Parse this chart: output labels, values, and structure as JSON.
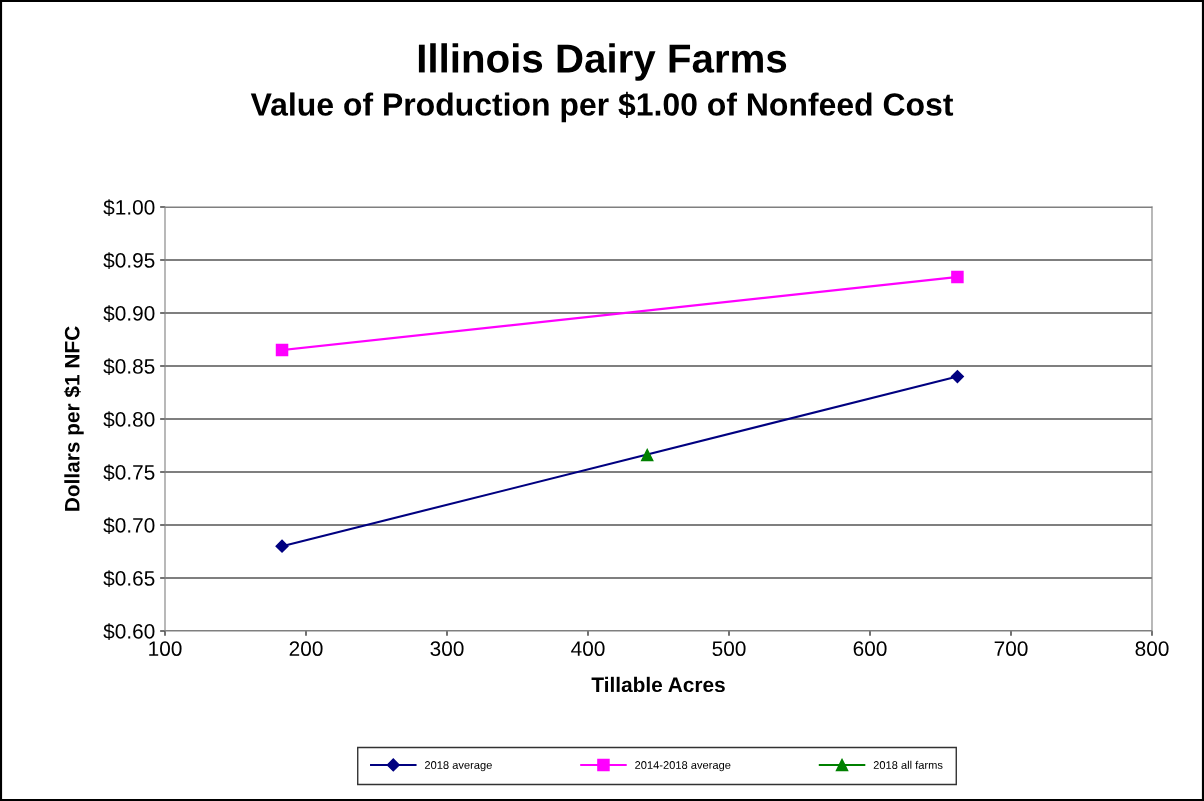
{
  "chart_data": {
    "type": "line",
    "title": "Illinois Dairy Farms",
    "subtitle": "Value of Production per $1.00 of Nonfeed Cost",
    "xlabel": "Tillable Acres",
    "ylabel": "Dollars per $1 NFC",
    "xlim": [
      100,
      800
    ],
    "xticks": [
      100,
      200,
      300,
      400,
      500,
      600,
      700,
      800
    ],
    "ylim": [
      0.6,
      1.0
    ],
    "yticks": [
      {
        "value": 0.6,
        "label": "$0.60"
      },
      {
        "value": 0.65,
        "label": "$0.65"
      },
      {
        "value": 0.7,
        "label": "$0.70"
      },
      {
        "value": 0.75,
        "label": "$0.75"
      },
      {
        "value": 0.8,
        "label": "$0.80"
      },
      {
        "value": 0.85,
        "label": "$0.85"
      },
      {
        "value": 0.9,
        "label": "$0.90"
      },
      {
        "value": 0.95,
        "label": "$0.95"
      },
      {
        "value": 1.0,
        "label": "$1.00"
      }
    ],
    "grid": "y",
    "legend": "bottom",
    "series": [
      {
        "name": "2018 average",
        "color": "#000080",
        "marker": "diamond",
        "x": [
          183,
          662
        ],
        "values": [
          0.68,
          0.84
        ]
      },
      {
        "name": "2014-2018 average",
        "color": "#ff00ff",
        "marker": "square",
        "x": [
          183,
          662
        ],
        "values": [
          0.865,
          0.934
        ]
      },
      {
        "name": "2018 all farms",
        "color": "#008000",
        "marker": "triangle",
        "x": [
          442
        ],
        "values": [
          0.766
        ]
      }
    ]
  }
}
